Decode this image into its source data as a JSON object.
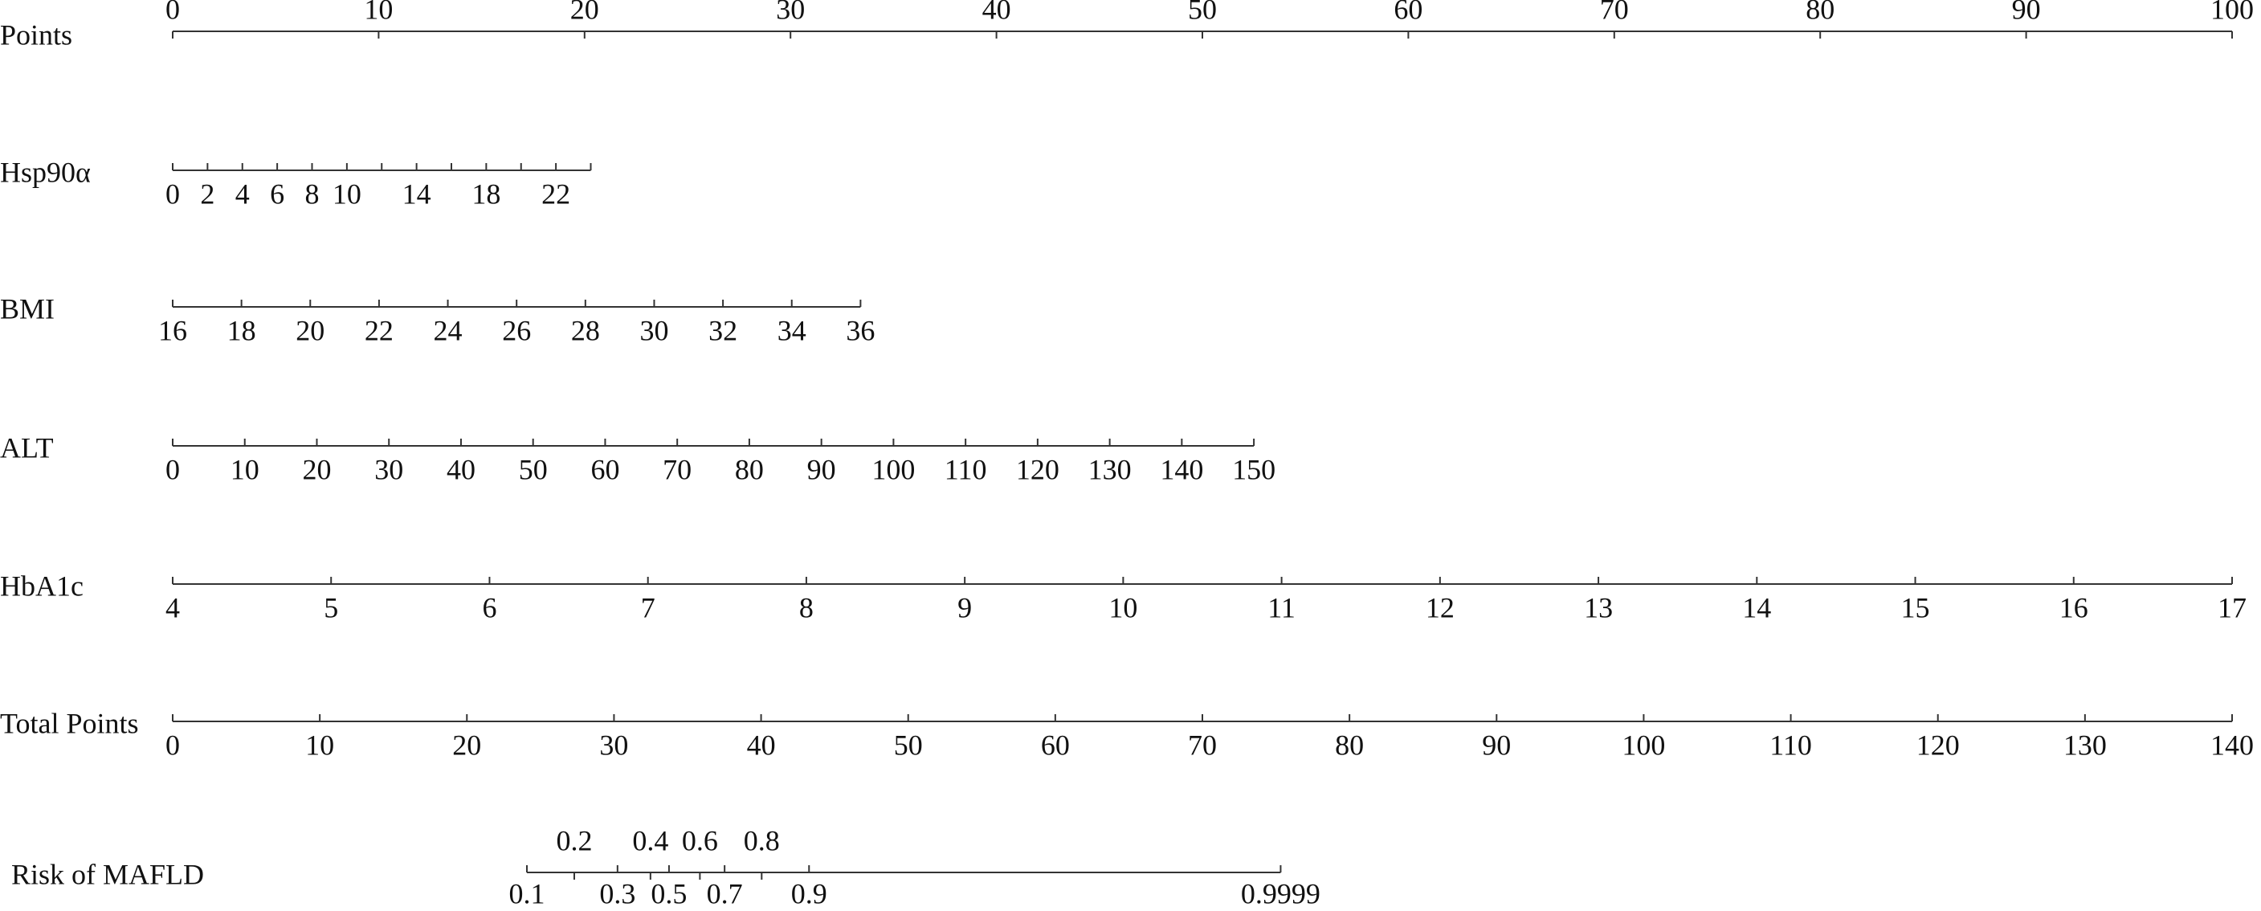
{
  "chart_data": {
    "type": "nomogram",
    "rows": [
      {
        "name": "Points",
        "xlim": [
          0,
          100
        ],
        "points": [
          0,
          100
        ],
        "ticks": [
          0,
          10,
          20,
          30,
          40,
          50,
          60,
          70,
          80,
          90,
          100
        ],
        "label_side": "above"
      },
      {
        "name": "Hsp90α",
        "xlim": [
          0,
          24
        ],
        "points": [
          0,
          20.3
        ],
        "ticks": [
          0,
          2,
          4,
          6,
          8,
          10,
          14,
          18,
          22
        ],
        "minor_ticks": [
          12,
          16,
          20,
          24
        ],
        "label_side": "below"
      },
      {
        "name": "BMI",
        "xlim": [
          16,
          36
        ],
        "points": [
          0,
          33.4
        ],
        "ticks": [
          16,
          18,
          20,
          22,
          24,
          26,
          28,
          30,
          32,
          34,
          36
        ],
        "label_side": "below"
      },
      {
        "name": "ALT",
        "xlim": [
          0,
          150
        ],
        "points": [
          0,
          52.5
        ],
        "ticks": [
          0,
          10,
          20,
          30,
          40,
          50,
          60,
          70,
          80,
          90,
          100,
          110,
          120,
          130,
          140,
          150
        ],
        "label_side": "below"
      },
      {
        "name": "HbA1c",
        "xlim": [
          4,
          17
        ],
        "points": [
          0,
          100
        ],
        "ticks": [
          4,
          5,
          6,
          7,
          8,
          9,
          10,
          11,
          12,
          13,
          14,
          15,
          16,
          17
        ],
        "label_side": "below"
      },
      {
        "name": "Total Points",
        "xlim": [
          0,
          140
        ],
        "points": [
          0,
          100
        ],
        "ticks": [
          0,
          10,
          20,
          30,
          40,
          50,
          60,
          70,
          80,
          90,
          100,
          110,
          120,
          130,
          140
        ],
        "label_side": "below"
      },
      {
        "name": "Risk of MAFLD",
        "ticks": [
          0.1,
          0.2,
          0.3,
          0.4,
          0.5,
          0.6,
          0.7,
          0.8,
          0.9,
          0.9999
        ],
        "tick_points": [
          17.2,
          19.5,
          21.6,
          23.2,
          24.1,
          25.6,
          26.8,
          28.6,
          30.9,
          53.8
        ],
        "tick_label_sides": [
          "below",
          "above",
          "below",
          "above",
          "below",
          "above",
          "below",
          "above",
          "below",
          "below"
        ]
      }
    ]
  }
}
